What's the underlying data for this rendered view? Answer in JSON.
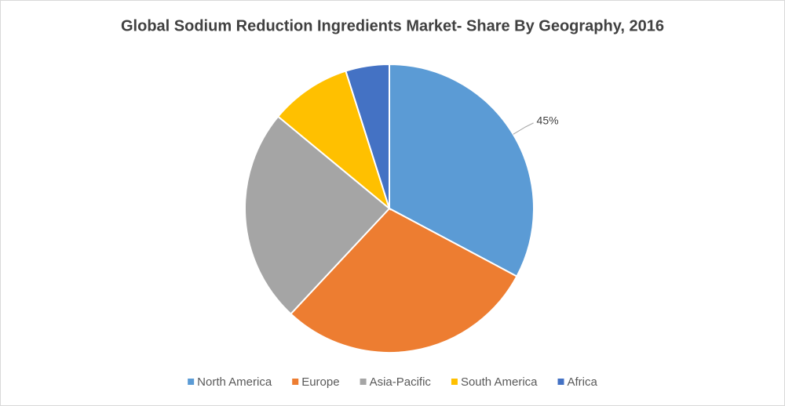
{
  "chart_data": {
    "type": "pie",
    "title": "Global Sodium Reduction Ingredients Market- Share By Geography, 2016",
    "categories": [
      "North America",
      "Europe",
      "Asia-Pacific",
      "South America",
      "Africa"
    ],
    "values": [
      45,
      40,
      33,
      12.5,
      6.7
    ],
    "value_labels": [
      "45%",
      null,
      null,
      null,
      null
    ],
    "colors": [
      "#5b9bd5",
      "#ed7d31",
      "#a5a5a5",
      "#ffc000",
      "#4472c4"
    ],
    "legend": "bottom"
  }
}
